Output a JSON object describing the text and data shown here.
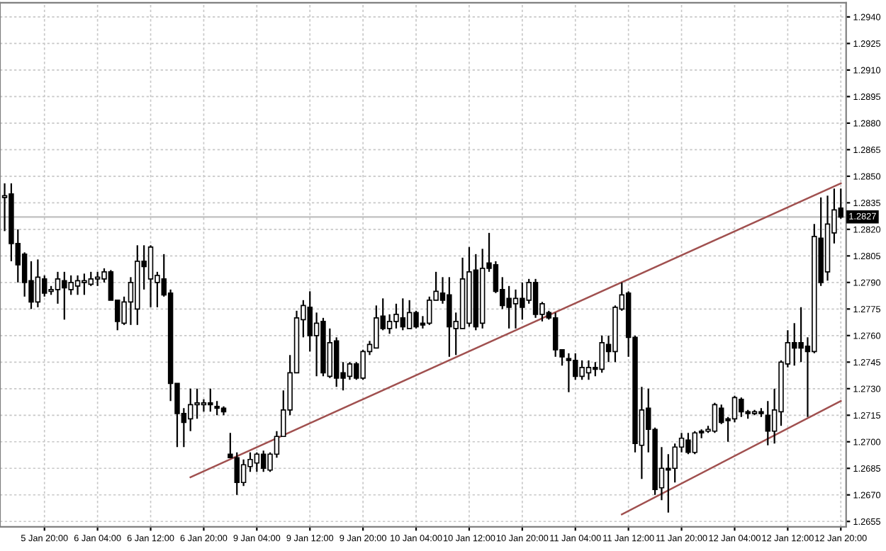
{
  "chart_data": {
    "type": "candlestick",
    "color": "#000000",
    "categories": [
      null,
      null,
      null,
      null,
      null,
      null,
      "5 Jan 20:00",
      null,
      null,
      null,
      null,
      null,
      null,
      null,
      "6 Jan 04:00",
      null,
      null,
      null,
      null,
      null,
      null,
      null,
      "6 Jan 12:00",
      null,
      null,
      null,
      null,
      null,
      null,
      null,
      "6 Jan 20:00",
      null,
      null,
      null,
      null,
      null,
      null,
      null,
      "9 Jan 04:00",
      null,
      null,
      null,
      null,
      null,
      null,
      null,
      "9 Jan 12:00",
      null,
      null,
      null,
      null,
      null,
      null,
      null,
      "9 Jan 20:00",
      null,
      null,
      null,
      null,
      null,
      null,
      null,
      "10 Jan 04:00",
      null,
      null,
      null,
      null,
      null,
      null,
      null,
      "10 Jan 12:00",
      null,
      null,
      null,
      null,
      null,
      null,
      null,
      "10 Jan 20:00",
      null,
      null,
      null,
      null,
      null,
      null,
      null,
      "11 Jan 04:00",
      null,
      null,
      null,
      null,
      null,
      null,
      null,
      "11 Jan 12:00",
      null,
      null,
      null,
      null,
      null,
      null,
      null,
      "11 Jan 20:00",
      null,
      null,
      null,
      null,
      null,
      null,
      null,
      "12 Jan 04:00",
      null,
      null,
      null,
      null,
      null,
      null,
      null,
      "12 Jan 12:00",
      null,
      null,
      null,
      null,
      null,
      null,
      null,
      "12 Jan 20:00"
    ],
    "ohlc": [
      [
        1.2838,
        1.2846,
        1.2819,
        1.2839
      ],
      [
        1.284,
        1.2846,
        1.2802,
        1.2812
      ],
      [
        1.2812,
        1.282,
        1.279,
        1.28
      ],
      [
        1.2806,
        1.2807,
        1.2782,
        1.279
      ],
      [
        1.2791,
        1.2802,
        1.2775,
        1.2779
      ],
      [
        1.2779,
        1.2803,
        1.2776,
        1.2793
      ],
      [
        1.2792,
        1.2794,
        1.2782,
        1.2784
      ],
      [
        1.2785,
        1.2788,
        1.2783,
        1.2786
      ],
      [
        1.2786,
        1.2796,
        1.2778,
        1.2792
      ],
      [
        1.2791,
        1.2796,
        1.2769,
        1.2787
      ],
      [
        1.2786,
        1.2794,
        1.2783,
        1.279
      ],
      [
        1.2788,
        1.2794,
        1.2783,
        1.2791
      ],
      [
        1.279,
        1.2795,
        1.2783,
        1.2791
      ],
      [
        1.2789,
        1.2796,
        1.2788,
        1.2792
      ],
      [
        1.2792,
        1.2796,
        1.2788,
        1.2793
      ],
      [
        1.2792,
        1.2798,
        1.279,
        1.2796
      ],
      [
        1.2796,
        1.2797,
        1.278,
        1.278
      ],
      [
        1.278,
        1.278,
        1.2763,
        1.2768
      ],
      [
        1.2767,
        1.2782,
        1.2766,
        1.2779
      ],
      [
        1.2779,
        1.2793,
        1.2766,
        1.279
      ],
      [
        1.2775,
        1.2811,
        1.2766,
        1.2802
      ],
      [
        1.2802,
        1.2811,
        1.2786,
        1.2799
      ],
      [
        1.2792,
        1.2811,
        1.2776,
        1.281
      ],
      [
        1.279,
        1.2796,
        1.2776,
        1.2794
      ],
      [
        1.2792,
        1.2806,
        1.2782,
        1.2783
      ],
      [
        1.2784,
        1.2786,
        1.2723,
        1.2733
      ],
      [
        1.2733,
        1.2733,
        1.2697,
        1.2716
      ],
      [
        1.2716,
        1.2719,
        1.2697,
        1.2711
      ],
      [
        1.2713,
        1.273,
        1.2706,
        1.2721
      ],
      [
        1.2721,
        1.273,
        1.2713,
        1.2722
      ],
      [
        1.2721,
        1.2724,
        1.2717,
        1.2722
      ],
      [
        1.2722,
        1.273,
        1.2717,
        1.2721
      ],
      [
        1.272,
        1.2723,
        1.2715,
        1.2719
      ],
      [
        1.2719,
        1.272,
        1.2715,
        1.2717
      ],
      [
        1.2693,
        1.2705,
        1.2691,
        1.2691
      ],
      [
        1.2691,
        1.2694,
        1.267,
        1.2677
      ],
      [
        1.2677,
        1.269,
        1.2675,
        1.2687
      ],
      [
        1.2686,
        1.2694,
        1.2683,
        1.269
      ],
      [
        1.2688,
        1.2694,
        1.2683,
        1.2693
      ],
      [
        1.2693,
        1.2695,
        1.2683,
        1.2685
      ],
      [
        1.2684,
        1.2694,
        1.2683,
        1.2693
      ],
      [
        1.2693,
        1.2706,
        1.2691,
        1.2703
      ],
      [
        1.2703,
        1.2729,
        1.2703,
        1.2718
      ],
      [
        1.2718,
        1.2749,
        1.2715,
        1.2739
      ],
      [
        1.2739,
        1.2774,
        1.2739,
        1.277
      ],
      [
        1.2769,
        1.278,
        1.2759,
        1.2777
      ],
      [
        1.2776,
        1.2785,
        1.2751,
        1.276
      ],
      [
        1.276,
        1.2773,
        1.2737,
        1.2767
      ],
      [
        1.2768,
        1.277,
        1.2737,
        1.2739
      ],
      [
        1.2737,
        1.2764,
        1.2736,
        1.2756
      ],
      [
        1.2757,
        1.2759,
        1.2731,
        1.2736
      ],
      [
        1.2739,
        1.2745,
        1.2729,
        1.2736
      ],
      [
        1.2737,
        1.2745,
        1.2735,
        1.2744
      ],
      [
        1.2744,
        1.2745,
        1.2735,
        1.2736
      ],
      [
        1.2736,
        1.2752,
        1.2735,
        1.2751
      ],
      [
        1.2751,
        1.2757,
        1.2749,
        1.2755
      ],
      [
        1.2753,
        1.2777,
        1.2753,
        1.277
      ],
      [
        1.2771,
        1.2781,
        1.2763,
        1.2764
      ],
      [
        1.2764,
        1.2772,
        1.2761,
        1.2768
      ],
      [
        1.2768,
        1.2778,
        1.2764,
        1.2772
      ],
      [
        1.277,
        1.2781,
        1.2763,
        1.2765
      ],
      [
        1.2764,
        1.278,
        1.2764,
        1.2773
      ],
      [
        1.2773,
        1.2774,
        1.2764,
        1.2765
      ],
      [
        1.2767,
        1.2771,
        1.2764,
        1.2766
      ],
      [
        1.2767,
        1.2782,
        1.2766,
        1.278
      ],
      [
        1.278,
        1.2796,
        1.278,
        1.2785
      ],
      [
        1.2784,
        1.2793,
        1.2778,
        1.278
      ],
      [
        1.2783,
        1.2793,
        1.2748,
        1.2765
      ],
      [
        1.2764,
        1.2773,
        1.2749,
        1.2768
      ],
      [
        1.2764,
        1.2804,
        1.2764,
        1.2792
      ],
      [
        1.2767,
        1.281,
        1.2765,
        1.2796
      ],
      [
        1.2797,
        1.2806,
        1.2763,
        1.2765
      ],
      [
        1.2767,
        1.2809,
        1.2764,
        1.2798
      ],
      [
        1.2801,
        1.2818,
        1.2796,
        1.2798
      ],
      [
        1.28,
        1.2802,
        1.2784,
        1.2785
      ],
      [
        1.2786,
        1.2793,
        1.2775,
        1.2777
      ],
      [
        1.2781,
        1.2788,
        1.2764,
        1.2776
      ],
      [
        1.2778,
        1.2786,
        1.2764,
        1.2781
      ],
      [
        1.2781,
        1.279,
        1.2769,
        1.2776
      ],
      [
        1.278,
        1.2792,
        1.2778,
        1.279
      ],
      [
        1.279,
        1.2792,
        1.277,
        1.2772
      ],
      [
        1.2772,
        1.2779,
        1.2768,
        1.2778
      ],
      [
        1.2773,
        1.2774,
        1.2769,
        1.277
      ],
      [
        1.277,
        1.2773,
        1.2748,
        1.2752
      ],
      [
        1.2752,
        1.2752,
        1.2743,
        1.2748
      ],
      [
        1.2747,
        1.275,
        1.2728,
        1.2746
      ],
      [
        1.2746,
        1.275,
        1.2735,
        1.2737
      ],
      [
        1.2737,
        1.2746,
        1.2735,
        1.2742
      ],
      [
        1.2739,
        1.2746,
        1.2735,
        1.2742
      ],
      [
        1.2742,
        1.2745,
        1.2737,
        1.2741
      ],
      [
        1.2741,
        1.276,
        1.2739,
        1.2756
      ],
      [
        1.2755,
        1.276,
        1.2745,
        1.2751
      ],
      [
        1.2751,
        1.2777,
        1.2745,
        1.2776
      ],
      [
        1.2775,
        1.279,
        1.2774,
        1.2783
      ],
      [
        1.2784,
        1.2785,
        1.2748,
        1.2759
      ],
      [
        1.2759,
        1.276,
        1.2694,
        1.2699
      ],
      [
        1.2698,
        1.2731,
        1.2679,
        1.2718
      ],
      [
        1.2719,
        1.273,
        1.2694,
        1.2707
      ],
      [
        1.2707,
        1.2708,
        1.267,
        1.2673
      ],
      [
        1.2674,
        1.2697,
        1.2667,
        1.2685
      ],
      [
        1.2685,
        1.2693,
        1.266,
        1.2684
      ],
      [
        1.2685,
        1.2699,
        1.2677,
        1.2697
      ],
      [
        1.2697,
        1.2705,
        1.2694,
        1.2702
      ],
      [
        1.2701,
        1.2705,
        1.2693,
        1.2694
      ],
      [
        1.2694,
        1.2706,
        1.2693,
        1.2705
      ],
      [
        1.2706,
        1.2707,
        1.2702,
        1.2705
      ],
      [
        1.2706,
        1.2709,
        1.2705,
        1.2707
      ],
      [
        1.2706,
        1.2722,
        1.2705,
        1.2721
      ],
      [
        1.2719,
        1.2721,
        1.271,
        1.2711
      ],
      [
        1.2713,
        1.2714,
        1.27,
        1.2712
      ],
      [
        1.2713,
        1.2726,
        1.2711,
        1.2725
      ],
      [
        1.2724,
        1.2725,
        1.2714,
        1.2717
      ],
      [
        1.2717,
        1.2718,
        1.2713,
        1.2716
      ],
      [
        1.2716,
        1.2718,
        1.2715,
        1.2717
      ],
      [
        1.2717,
        1.2719,
        1.2714,
        1.2716
      ],
      [
        1.2715,
        1.2723,
        1.2698,
        1.2706
      ],
      [
        1.2706,
        1.273,
        1.2699,
        1.2718
      ],
      [
        1.2717,
        1.2746,
        1.2709,
        1.2745
      ],
      [
        1.2744,
        1.2763,
        1.2742,
        1.2756
      ],
      [
        1.2756,
        1.2767,
        1.2743,
        1.2753
      ],
      [
        1.2756,
        1.2776,
        1.2745,
        1.2753
      ],
      [
        1.2754,
        1.2759,
        1.2714,
        1.2751
      ],
      [
        1.2751,
        1.2823,
        1.275,
        1.2816
      ],
      [
        1.2815,
        1.2838,
        1.2788,
        1.279
      ],
      [
        1.2796,
        1.2839,
        1.2791,
        1.2823
      ],
      [
        1.2818,
        1.2843,
        1.2812,
        1.2831
      ],
      [
        1.2832,
        1.2843,
        1.2826,
        1.2827
      ]
    ],
    "series": [
      {
        "type": "line",
        "color": "#a0504f",
        "values": [
          null,
          null,
          null,
          null,
          null,
          null,
          null,
          null,
          null,
          null,
          null,
          null,
          null,
          null,
          null,
          null,
          null,
          null,
          null,
          null,
          null,
          null,
          null,
          null,
          null,
          null,
          null,
          null,
          1.268,
          null,
          null,
          null,
          null,
          null,
          null,
          null,
          null,
          null,
          null,
          null,
          null,
          null,
          null,
          null,
          null,
          null,
          null,
          null,
          null,
          null,
          null,
          null,
          null,
          null,
          null,
          null,
          null,
          null,
          null,
          null,
          null,
          null,
          null,
          null,
          null,
          null,
          null,
          null,
          null,
          null,
          null,
          null,
          null,
          null,
          null,
          null,
          null,
          null,
          null,
          null,
          null,
          null,
          null,
          null,
          null,
          null,
          null,
          null,
          null,
          null,
          null,
          null,
          null,
          null,
          null,
          null,
          null,
          null,
          null,
          null,
          null,
          null,
          null,
          null,
          null,
          null,
          null,
          null,
          null,
          null,
          null,
          null,
          null,
          null,
          null,
          null,
          null,
          null,
          null,
          null,
          null,
          null,
          null,
          null,
          null,
          null,
          1.2846
        ]
      },
      {
        "type": "line",
        "color": "#a0504f",
        "values": [
          null,
          null,
          null,
          null,
          null,
          null,
          null,
          null,
          null,
          null,
          null,
          null,
          null,
          null,
          null,
          null,
          null,
          null,
          null,
          null,
          null,
          null,
          null,
          null,
          null,
          null,
          null,
          null,
          null,
          null,
          null,
          null,
          null,
          null,
          null,
          null,
          null,
          null,
          null,
          null,
          null,
          null,
          null,
          null,
          null,
          null,
          null,
          null,
          null,
          null,
          null,
          null,
          null,
          null,
          null,
          null,
          null,
          null,
          null,
          null,
          null,
          null,
          null,
          null,
          null,
          null,
          null,
          null,
          null,
          null,
          null,
          null,
          null,
          null,
          null,
          null,
          null,
          null,
          null,
          null,
          null,
          null,
          null,
          null,
          null,
          null,
          null,
          null,
          null,
          null,
          null,
          null,
          null,
          1.2659,
          null,
          null,
          null,
          null,
          null,
          null,
          null,
          null,
          null,
          null,
          null,
          null,
          null,
          null,
          null,
          null,
          null,
          null,
          null,
          null,
          null,
          null,
          null,
          null,
          null,
          null,
          null,
          null,
          null,
          null,
          null,
          null,
          1.2723
        ]
      }
    ],
    "ylim": [
      1.2652,
      1.2948
    ],
    "yticks": [
      1.2655,
      {
        "value": 1.267,
        "label": "1.2670"
      },
      1.2685,
      {
        "value": 1.27,
        "label": "1.2700"
      },
      1.2715,
      {
        "value": 1.273,
        "label": "1.2730"
      },
      1.2745,
      {
        "value": 1.276,
        "label": "1.2760"
      },
      1.2775,
      {
        "value": 1.279,
        "label": "1.2790"
      },
      1.2805,
      {
        "value": 1.282,
        "label": "1.2820"
      },
      1.2835,
      {
        "value": 1.285,
        "label": "1.2850"
      },
      1.2865,
      {
        "value": 1.288,
        "label": "1.2880"
      },
      1.2895,
      {
        "value": 1.291,
        "label": "1.2910"
      },
      1.2925,
      {
        "value": 1.294,
        "label": "1.2940"
      }
    ],
    "ref_lines": [
      {
        "axis": "y",
        "value": 1.2827,
        "label": "1.2827",
        "color": "#c0c0c0",
        "line_style": "solid"
      }
    ],
    "grid": true
  }
}
